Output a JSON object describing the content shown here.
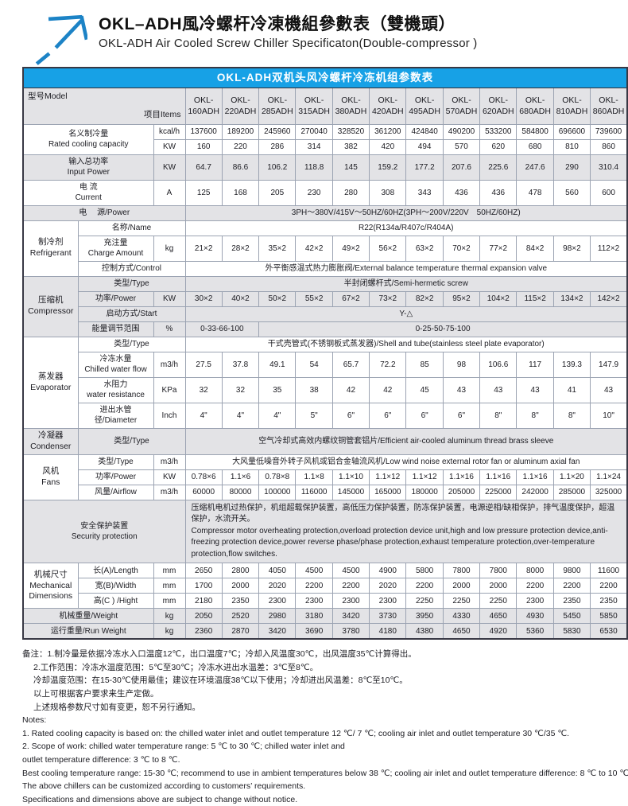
{
  "header": {
    "logo_icon": "arrow-up-right-icon",
    "title_zh": "OKL–ADH風冷螺杆冷凍機組參數表（雙機頭）",
    "title_en": "OKL-ADH Air Cooled Screw Chiller Specificaton(Double-compressor )"
  },
  "colors": {
    "accent_blue": "#17a1e6",
    "logo_blue": "#1c83c6",
    "row_gray": "#e3e3e6",
    "border_dark": "#383844",
    "border_light": "#9ba3b2"
  },
  "table": {
    "caption": "OKL-ADH双机头风冷螺杆冷冻机组参数表",
    "corner_model": "型号Model",
    "corner_items": "项目Items",
    "models": [
      "OKL-\n160ADH",
      "OKL-\n220ADH",
      "OKL-\n285ADH",
      "OKL-\n315ADH",
      "OKL-\n380ADH",
      "OKL-\n420ADH",
      "OKL-\n495ADH",
      "OKL-\n570ADH",
      "OKL-\n620ADH",
      "OKL-\n680ADH",
      "OKL-\n810ADH",
      "OKL-\n860ADH"
    ],
    "rows": [
      {
        "bg": "w",
        "sec": true,
        "cells": [
          {
            "t": "名义制冷量\nRated cooling capacity",
            "cs": 2,
            "rs": 2,
            "cl": "lab"
          },
          {
            "t": "kcal/h",
            "cl": "unit"
          },
          {
            "vals": [
              "137600",
              "189200",
              "245960",
              "270040",
              "328520",
              "361200",
              "424840",
              "490200",
              "533200",
              "584800",
              "696600",
              "739600"
            ]
          }
        ]
      },
      {
        "bg": "w",
        "cells": [
          {
            "t": "KW",
            "cl": "unit"
          },
          {
            "vals": [
              "160",
              "220",
              "286",
              "314",
              "382",
              "420",
              "494",
              "570",
              "620",
              "680",
              "810",
              "860"
            ]
          }
        ]
      },
      {
        "bg": "g",
        "sec": true,
        "cells": [
          {
            "t": "输入总功率\nInput Power",
            "cs": 2,
            "cl": "lab"
          },
          {
            "t": "KW",
            "cl": "unit"
          },
          {
            "vals": [
              "64.7",
              "86.6",
              "106.2",
              "118.8",
              "145",
              "159.2",
              "177.2",
              "207.6",
              "225.6",
              "247.6",
              "290",
              "310.4"
            ]
          }
        ]
      },
      {
        "bg": "w",
        "sec": true,
        "cells": [
          {
            "t": "电 流\nCurrent",
            "cs": 2,
            "cl": "lab"
          },
          {
            "t": "A",
            "cl": "unit"
          },
          {
            "vals": [
              "125",
              "168",
              "205",
              "230",
              "280",
              "308",
              "343",
              "436",
              "436",
              "478",
              "560",
              "600"
            ]
          }
        ]
      },
      {
        "bg": "g",
        "sec": true,
        "cells": [
          {
            "t": "电　 源/Power",
            "cs": 3,
            "cl": "lab"
          },
          {
            "t": "3PH～380V/415V～50HZ/60HZ(3PH～200V/220V　50HZ/60HZ)",
            "cs": 12,
            "cl": "span"
          }
        ]
      },
      {
        "bg": "w",
        "sec": true,
        "cells": [
          {
            "t": "制冷剂\nRefrigerant",
            "rs": 3,
            "cl": "cat"
          },
          {
            "t": "名称/Name",
            "cs": 2,
            "cl": "lab"
          },
          {
            "t": "R22(R134a/R407c/R404A)",
            "cs": 12,
            "cl": "span"
          }
        ]
      },
      {
        "bg": "w",
        "cells": [
          {
            "t": "充注量\nCharge Amount",
            "cl": "lab"
          },
          {
            "t": "kg",
            "cl": "unit"
          },
          {
            "vals": [
              "21×2",
              "28×2",
              "35×2",
              "42×2",
              "49×2",
              "56×2",
              "63×2",
              "70×2",
              "77×2",
              "84×2",
              "98×2",
              "112×2"
            ]
          }
        ]
      },
      {
        "bg": "w",
        "cells": [
          {
            "t": "控制方式/Control",
            "cs": 2,
            "cl": "lab"
          },
          {
            "t": "外平衡感温式热力膨胀阀/External balance temperature thermal expansion valve",
            "cs": 12,
            "cl": "span"
          }
        ]
      },
      {
        "bg": "g",
        "sec": true,
        "cells": [
          {
            "t": "压缩机\nCompressor",
            "rs": 4,
            "cl": "cat"
          },
          {
            "t": "类型/Type",
            "cs": 2,
            "cl": "lab"
          },
          {
            "t": "半封闭螺杆式/Semi-hermetic screw",
            "cs": 12,
            "cl": "span"
          }
        ]
      },
      {
        "bg": "g",
        "cells": [
          {
            "t": "功率/Power",
            "cl": "lab"
          },
          {
            "t": "KW",
            "cl": "unit"
          },
          {
            "vals": [
              "30×2",
              "40×2",
              "50×2",
              "55×2",
              "67×2",
              "73×2",
              "82×2",
              "95×2",
              "104×2",
              "115×2",
              "134×2",
              "142×2"
            ]
          }
        ]
      },
      {
        "bg": "g",
        "cells": [
          {
            "t": "启动方式/Start",
            "cs": 2,
            "cl": "lab"
          },
          {
            "t": "Y-△",
            "cs": 12,
            "cl": "span"
          }
        ]
      },
      {
        "bg": "g",
        "cells": [
          {
            "t": "能量调节范围",
            "cl": "lab"
          },
          {
            "t": "%",
            "cl": "unit"
          },
          {
            "t": "0-33-66-100",
            "cs": 2,
            "cl": "span"
          },
          {
            "t": "0-25-50-75-100",
            "cs": 10,
            "cl": "span"
          }
        ]
      },
      {
        "bg": "w",
        "sec": true,
        "cells": [
          {
            "t": "蒸发器\nEvaporator",
            "rs": 4,
            "cl": "cat"
          },
          {
            "t": "类型/Type",
            "cs": 2,
            "cl": "lab"
          },
          {
            "t": "干式壳管式(不锈钢板式蒸发器)/Shell and tube(stainless steel plate evaporator)",
            "cs": 12,
            "cl": "span"
          }
        ]
      },
      {
        "bg": "w",
        "cells": [
          {
            "t": "冷冻水量\nChilled water flow",
            "cl": "lab"
          },
          {
            "t": "m3/h",
            "cl": "unit"
          },
          {
            "vals": [
              "27.5",
              "37.8",
              "49.1",
              "54",
              "65.7",
              "72.2",
              "85",
              "98",
              "106.6",
              "117",
              "139.3",
              "147.9"
            ]
          }
        ]
      },
      {
        "bg": "w",
        "cells": [
          {
            "t": "水阻力\nwater resistance",
            "cl": "lab"
          },
          {
            "t": "KPa",
            "cl": "unit"
          },
          {
            "vals": [
              "32",
              "32",
              "35",
              "38",
              "42",
              "42",
              "45",
              "43",
              "43",
              "43",
              "41",
              "43"
            ]
          }
        ]
      },
      {
        "bg": "w",
        "cells": [
          {
            "t": "进出水管径/Diameter",
            "cl": "lab"
          },
          {
            "t": "Inch",
            "cl": "unit"
          },
          {
            "vals": [
              "4\"",
              "4\"",
              "4\"",
              "5\"",
              "6\"",
              "6\"",
              "6\"",
              "6\"",
              "8\"",
              "8\"",
              "8\"",
              "10\""
            ]
          }
        ]
      },
      {
        "bg": "g",
        "sec": true,
        "cells": [
          {
            "t": "冷凝器\nCondenser",
            "cl": "cat"
          },
          {
            "t": "类型/Type",
            "cs": 2,
            "cl": "lab"
          },
          {
            "t": "空气冷却式高效内螺纹铜管套铝片/Efficient air-cooled aluminum thread brass sleeve",
            "cs": 12,
            "cl": "span"
          }
        ]
      },
      {
        "bg": "w",
        "sec": true,
        "cells": [
          {
            "t": "风机\nFans",
            "rs": 3,
            "cl": "cat"
          },
          {
            "t": "类型/Type",
            "cl": "lab"
          },
          {
            "t": "m3/h",
            "cl": "unit"
          },
          {
            "t": "大风量低噪音外转子风机或铝合金轴流风机/Low wind noise external rotor fan or aluminum axial fan",
            "cs": 12,
            "cl": "span"
          }
        ]
      },
      {
        "bg": "w",
        "cells": [
          {
            "t": "功率/Power",
            "cl": "lab"
          },
          {
            "t": "KW",
            "cl": "unit"
          },
          {
            "vals": [
              "0.78×6",
              "1.1×6",
              "0.78×8",
              "1.1×8",
              "1.1×10",
              "1.1×12",
              "1.1×12",
              "1.1×16",
              "1.1×16",
              "1.1×16",
              "1.1×20",
              "1.1×24"
            ]
          }
        ]
      },
      {
        "bg": "w",
        "cells": [
          {
            "t": "风量/Airflow",
            "cl": "lab"
          },
          {
            "t": "m3/h",
            "cl": "unit"
          },
          {
            "vals": [
              "60000",
              "80000",
              "100000",
              "116000",
              "145000",
              "165000",
              "180000",
              "205000",
              "225000",
              "242000",
              "285000",
              "325000"
            ]
          }
        ]
      },
      {
        "bg": "g",
        "sec": true,
        "cells": [
          {
            "t": "安全保护装置\nSecurity protection",
            "cs": 3,
            "cl": "lab"
          },
          {
            "t": "压缩机电机过热保护，机组超载保护装置，高低压力保护装置，防冻保护装置，电源逆相/缺相保护，排气温度保护，超温保护，水流开关。\nCompressor motor overheating protection,overload protection device unit,high and low pressure protection device,anti-freezing protection device,power reverse phase/phase protection,exhaust temperature protection,over-temperature protection,flow switches.",
            "cs": 12,
            "cl": "note"
          }
        ]
      },
      {
        "bg": "w",
        "sec": true,
        "cells": [
          {
            "t": "机械尺寸\nMechanical\nDimensions",
            "rs": 3,
            "cl": "cat"
          },
          {
            "t": "长(A)/Length",
            "cl": "lab"
          },
          {
            "t": "mm",
            "cl": "unit"
          },
          {
            "vals": [
              "2650",
              "2800",
              "4050",
              "4500",
              "4500",
              "4900",
              "5800",
              "7800",
              "7800",
              "8000",
              "9800",
              "11600"
            ]
          }
        ]
      },
      {
        "bg": "w",
        "cells": [
          {
            "t": "宽(B)/Width",
            "cl": "lab"
          },
          {
            "t": "mm",
            "cl": "unit"
          },
          {
            "vals": [
              "1700",
              "2000",
              "2020",
              "2200",
              "2200",
              "2020",
              "2200",
              "2000",
              "2000",
              "2200",
              "2200",
              "2200"
            ]
          }
        ]
      },
      {
        "bg": "w",
        "cells": [
          {
            "t": "高(C ) /Hight",
            "cl": "lab"
          },
          {
            "t": "mm",
            "cl": "unit"
          },
          {
            "vals": [
              "2180",
              "2350",
              "2300",
              "2300",
              "2300",
              "2300",
              "2250",
              "2250",
              "2250",
              "2300",
              "2350",
              "2350"
            ]
          }
        ]
      },
      {
        "bg": "g",
        "sec": true,
        "cells": [
          {
            "t": "机械重量/Weight",
            "cs": 2,
            "cl": "lab"
          },
          {
            "t": "kg",
            "cl": "unit"
          },
          {
            "vals": [
              "2050",
              "2520",
              "2980",
              "3180",
              "3420",
              "3730",
              "3950",
              "4330",
              "4650",
              "4930",
              "5450",
              "5850"
            ]
          }
        ]
      },
      {
        "bg": "g",
        "sec": true,
        "cells": [
          {
            "t": "运行重量/Run Weight",
            "cs": 2,
            "cl": "lab"
          },
          {
            "t": "kg",
            "cl": "unit"
          },
          {
            "vals": [
              "2360",
              "2870",
              "3420",
              "3690",
              "3780",
              "4180",
              "4380",
              "4650",
              "4920",
              "5360",
              "5830",
              "6530"
            ]
          }
        ]
      }
    ]
  },
  "notes": {
    "zh": [
      "备注：1.制冷量是依据冷冻水入口温度12℃，出口温度7℃；冷却入风温度30℃，出风温度35℃计算得出。",
      "2.工作范围：冷冻水温度范围：5℃至30℃；冷冻水进出水温差：3℃至8℃。",
      "冷却温度范围：在15-30℃使用最佳；建议在环境温度38℃以下使用；冷却进出风温差：8℃至10℃。",
      "以上可根据客户要求来生产定做。",
      "上述规格参数尺寸如有变更，恕不另行通知。"
    ],
    "en": [
      "Notes:",
      "1. Rated cooling capacity is based on: the chilled water inlet and outlet temperature 12 ℃/ 7 ℃; cooling air inlet and outlet temperature 30 ℃/35 ℃.",
      "2. Scope of work: chilled water temperature range: 5 ℃ to 30 ℃; chilled water inlet and",
      "outlet temperature difference: 3 ℃ to 8 ℃.",
      "Best cooling temperature range: 15-30 ℃; recommend to use in ambient temperatures below 38 ℃; cooling air inlet and outlet temperature difference: 8 ℃ to 10 ℃.",
      " The above chillers can be customized according to customers’  requirements.",
      "Specifications and dimensions above are subject to change without notice."
    ]
  }
}
